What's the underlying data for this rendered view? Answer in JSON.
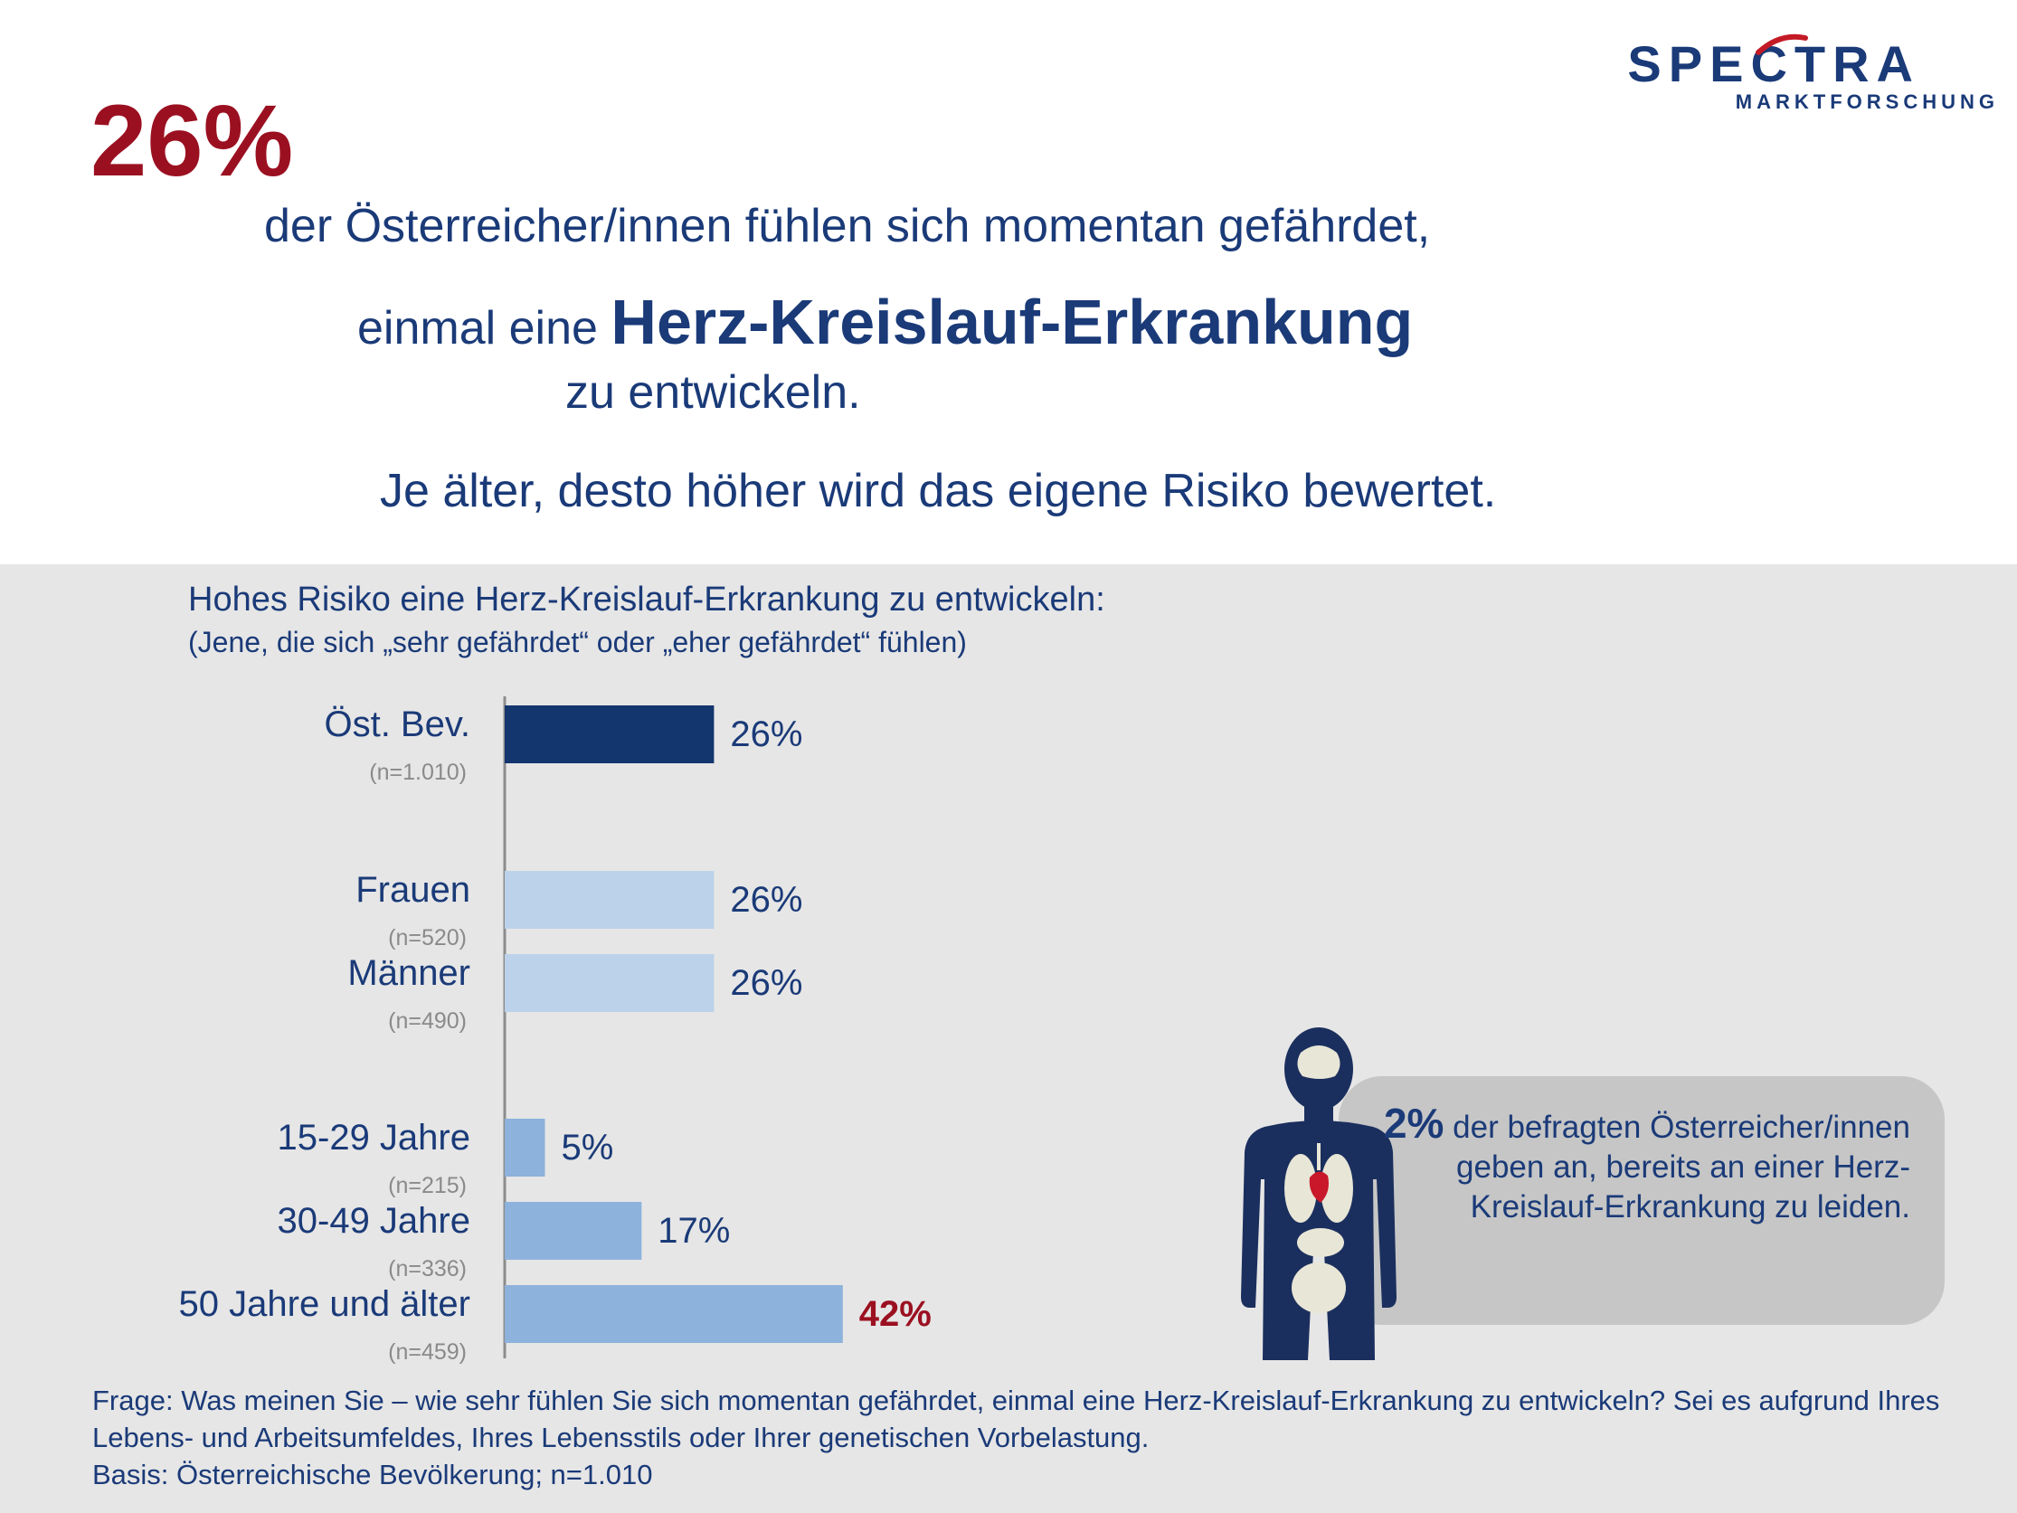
{
  "logo": {
    "word": "SPECTRA",
    "sub": "MARKTFORSCHUNG",
    "accent_color": "#c41a26"
  },
  "headline": {
    "percent": "26%",
    "line1": "der Österreicher/innen fühlen sich momentan gefährdet,",
    "line2_prefix": "einmal eine ",
    "line2_emphasis": "Herz-Kreislauf-Erkrankung",
    "line3": "zu entwickeln.",
    "line4": "Je älter, desto höher wird das eigene Risiko bewertet."
  },
  "chart_data": {
    "type": "bar",
    "orientation": "horizontal",
    "title": "Hohes Risiko eine Herz-Kreislauf-Erkrankung zu entwickeln:",
    "subtitle": "(Jene, die sich „sehr gefährdet“ oder „eher gefährdet“ fühlen)",
    "categories": [
      "Öst. Bev.",
      "Frauen",
      "Männer",
      "15-29 Jahre",
      "30-49 Jahre",
      "50 Jahre und älter"
    ],
    "sample_sizes": [
      "(n=1.010)",
      "(n=520)",
      "(n=490)",
      "(n=215)",
      "(n=336)",
      "(n=459)"
    ],
    "values": [
      26,
      26,
      26,
      5,
      17,
      42
    ],
    "value_labels": [
      "26%",
      "26%",
      "26%",
      "5%",
      "17%",
      "42%"
    ],
    "groups": [
      "total",
      "gender",
      "gender",
      "age",
      "age",
      "age"
    ],
    "colors": {
      "total": "#14366f",
      "gender": "#bcd2ea",
      "age": "#8db2dc",
      "highlight_label": "#9b1021",
      "label": "#1a3a78",
      "n": "#8a8a8a"
    },
    "highlight_index": 5,
    "xlim": [
      0,
      100
    ],
    "grid": false
  },
  "callout": {
    "percent": "2%",
    "text": " der befragten Österreicher/innen geben an, bereits an einer Herz-Kreislauf-Erkrankung zu leiden."
  },
  "footer": {
    "question": "Frage: Was meinen Sie – wie sehr fühlen Sie sich momentan gefährdet, einmal eine Herz-Kreislauf-Erkrankung zu entwickeln? Sei es aufgrund Ihres Lebens- und Arbeitsumfeldes, Ihres Lebensstils oder Ihrer genetischen Vorbelastung.",
    "basis": "Basis: Österreichische Bevölkerung; n=1.010"
  }
}
